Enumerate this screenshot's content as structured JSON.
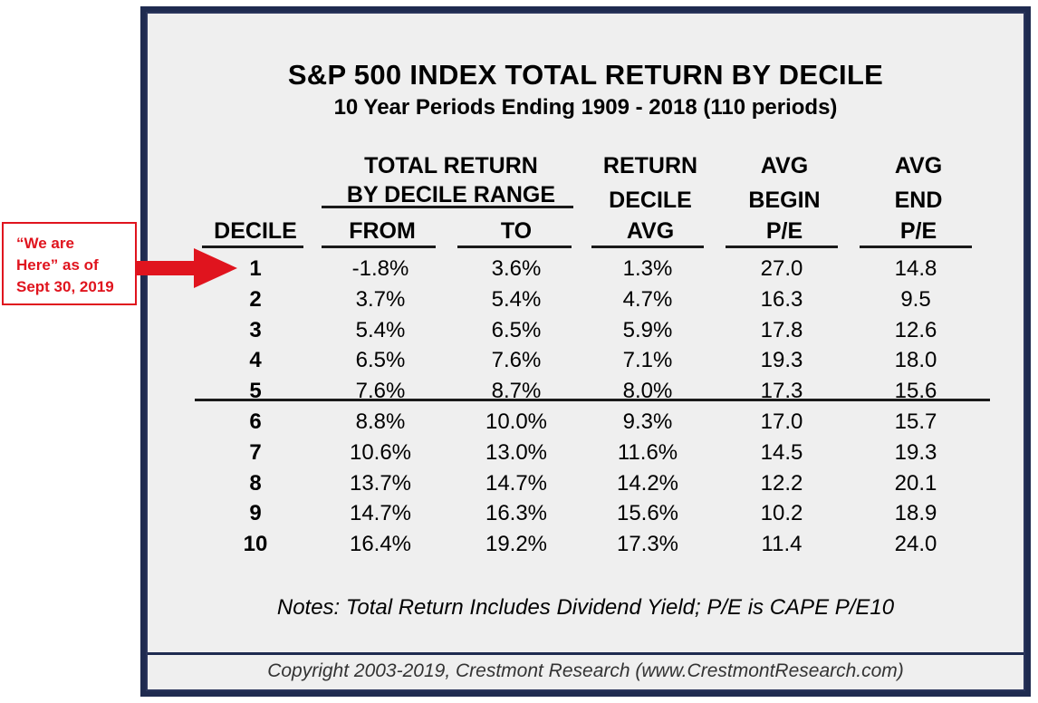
{
  "title": "S&P 500 INDEX TOTAL RETURN BY DECILE",
  "subtitle": "10 Year Periods Ending 1909 - 2018 (110 periods)",
  "headers": {
    "decile": "DECILE",
    "range_line1": "TOTAL RETURN",
    "range_line2": "BY DECILE RANGE",
    "from": "FROM",
    "to": "TO",
    "avg_line1": "RETURN",
    "avg_line2": "DECILE",
    "avg_line3": "AVG",
    "begin_line1": "AVG",
    "begin_line2": "BEGIN",
    "begin_line3": "P/E",
    "end_line1": "AVG",
    "end_line2": "END",
    "end_line3": "P/E"
  },
  "callout": {
    "line1": "“We are",
    "line2": "Here” as of",
    "line3": "Sept 30, 2019"
  },
  "notes": "Notes: Total Return Includes Dividend Yield; P/E is CAPE P/E10",
  "copyright": "Copyright 2003-2019, Crestmont Research (www.CrestmontResearch.com)",
  "colors": {
    "frame": "#1f2b50",
    "panel": "#efefef",
    "callout": "#e0141e"
  },
  "chart_data": {
    "type": "table",
    "title": "S&P 500 INDEX TOTAL RETURN BY DECILE",
    "subtitle": "10 Year Periods Ending 1909 - 2018 (110 periods)",
    "columns": [
      "DECILE",
      "FROM",
      "TO",
      "RETURN DECILE AVG",
      "AVG BEGIN P/E",
      "AVG END P/E"
    ],
    "rows": [
      {
        "decile": "1",
        "from": "-1.8%",
        "to": "3.6%",
        "avg": "1.3%",
        "begin_pe": "27.0",
        "end_pe": "14.8"
      },
      {
        "decile": "2",
        "from": "3.7%",
        "to": "5.4%",
        "avg": "4.7%",
        "begin_pe": "16.3",
        "end_pe": "9.5"
      },
      {
        "decile": "3",
        "from": "5.4%",
        "to": "6.5%",
        "avg": "5.9%",
        "begin_pe": "17.8",
        "end_pe": "12.6"
      },
      {
        "decile": "4",
        "from": "6.5%",
        "to": "7.6%",
        "avg": "7.1%",
        "begin_pe": "19.3",
        "end_pe": "18.0"
      },
      {
        "decile": "5",
        "from": "7.6%",
        "to": "8.7%",
        "avg": "8.0%",
        "begin_pe": "17.3",
        "end_pe": "15.6"
      },
      {
        "decile": "6",
        "from": "8.8%",
        "to": "10.0%",
        "avg": "9.3%",
        "begin_pe": "17.0",
        "end_pe": "15.7"
      },
      {
        "decile": "7",
        "from": "10.6%",
        "to": "13.0%",
        "avg": "11.6%",
        "begin_pe": "14.5",
        "end_pe": "19.3"
      },
      {
        "decile": "8",
        "from": "13.7%",
        "to": "14.7%",
        "avg": "14.2%",
        "begin_pe": "12.2",
        "end_pe": "20.1"
      },
      {
        "decile": "9",
        "from": "14.7%",
        "to": "16.3%",
        "avg": "15.6%",
        "begin_pe": "10.2",
        "end_pe": "18.9"
      },
      {
        "decile": "10",
        "from": "16.4%",
        "to": "19.2%",
        "avg": "17.3%",
        "begin_pe": "11.4",
        "end_pe": "24.0"
      }
    ],
    "highlighted_row": "1",
    "divider_after_row": "5"
  }
}
